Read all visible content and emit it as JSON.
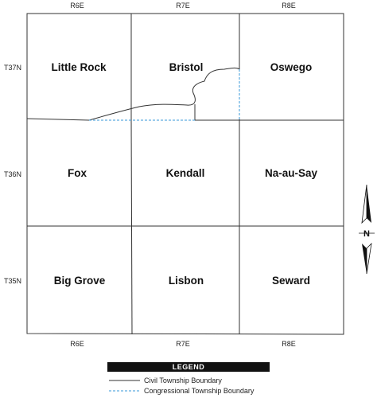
{
  "map": {
    "range_labels_top": [
      "R6E",
      "R7E",
      "R8E"
    ],
    "range_labels_bottom": [
      "R6E",
      "R7E",
      "R8E"
    ],
    "township_labels": [
      "T37N",
      "T36N",
      "T35N"
    ],
    "townships": [
      [
        "Little Rock",
        "Bristol",
        "Oswego"
      ],
      [
        "Fox",
        "Kendall",
        "Na-au-Say"
      ],
      [
        "Big Grove",
        "Lisbon",
        "Seward"
      ]
    ]
  },
  "north_arrow": {
    "label": "N",
    "icon": "north-arrow-icon"
  },
  "legend": {
    "title": "LEGEND",
    "items": [
      {
        "label": "Civil Township Boundary",
        "style": "solid",
        "color": "#333333"
      },
      {
        "label": "Congressional Township Boundary",
        "style": "dashed",
        "color": "#3a9ad9"
      }
    ]
  },
  "colors": {
    "boundary": "#333333",
    "congressional": "#3a9ad9",
    "legend_bar": "#111111"
  }
}
